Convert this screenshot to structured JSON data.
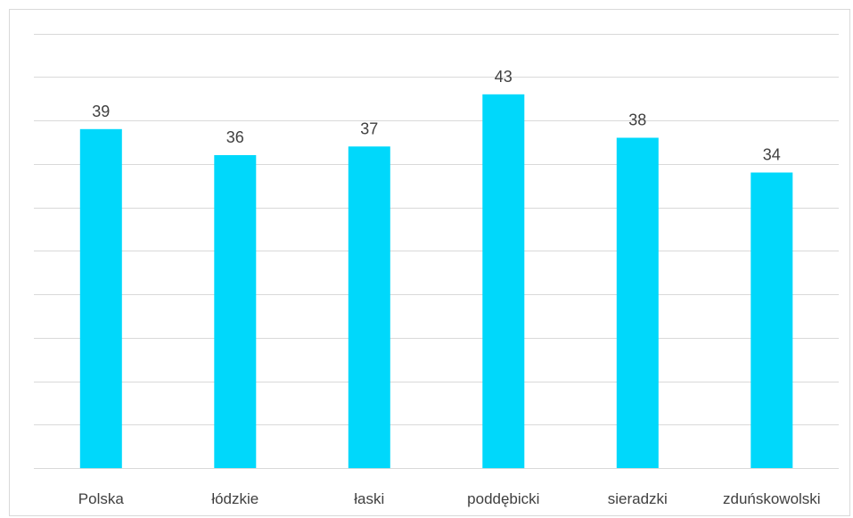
{
  "chart_data": {
    "type": "bar",
    "categories": [
      "Polska",
      "łódzkie",
      "łaski",
      "poddębicki",
      "sieradzki",
      "zduńskowolski"
    ],
    "values": [
      39,
      36,
      37,
      43,
      38,
      34
    ],
    "title": "",
    "xlabel": "",
    "ylabel": "",
    "ylim": [
      0,
      50
    ],
    "grid": true,
    "gridline_step": 5,
    "legend": "none",
    "bar_color": "#00d8fb",
    "gridline_color": "#d9d9d9",
    "text_color": "#404040"
  }
}
